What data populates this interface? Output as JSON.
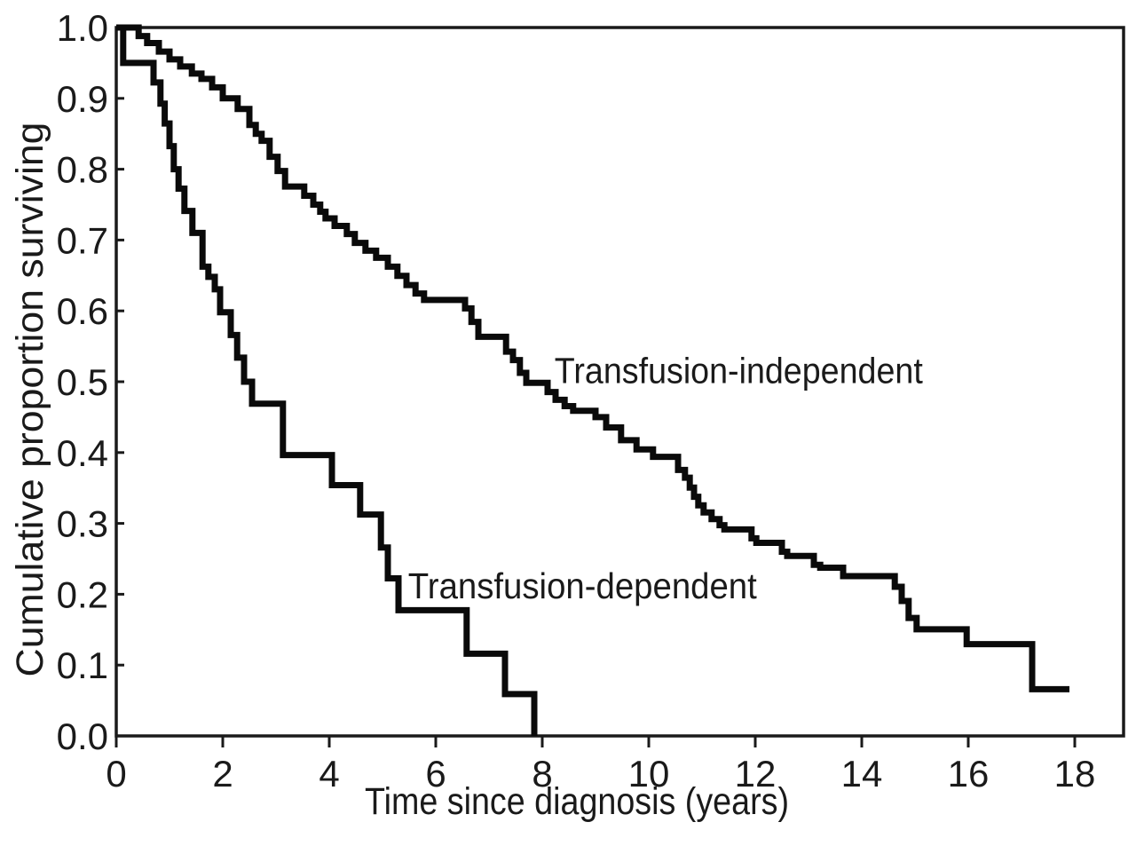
{
  "chart_data": {
    "type": "line",
    "subtype": "kaplan_meier_step_survival",
    "title": "",
    "xlabel": "Time since diagnosis (years)",
    "ylabel": "Cumulative proportion surviving",
    "xlim": [
      0,
      18.92
    ],
    "ylim": [
      0.0,
      1.0
    ],
    "x_ticks": [
      0,
      2,
      4,
      6,
      8,
      10,
      12,
      14,
      16,
      18
    ],
    "y_ticks": [
      0.0,
      0.1,
      0.2,
      0.3,
      0.4,
      0.5,
      0.6,
      0.7,
      0.8,
      0.9,
      1.0
    ],
    "grid": false,
    "frame": true,
    "legend_position": "inline-annotations",
    "background_color": "#ffffff",
    "line_color": "#0a0a0a",
    "series": [
      {
        "name": "Transfusion-independent",
        "end_time": 17.9,
        "points": [
          [
            0,
            1.0
          ],
          [
            0.42,
            0.988
          ],
          [
            0.58,
            0.978
          ],
          [
            0.8,
            0.966
          ],
          [
            1.0,
            0.955
          ],
          [
            1.2,
            0.945
          ],
          [
            1.42,
            0.935
          ],
          [
            1.6,
            0.9275
          ],
          [
            1.8,
            0.9155
          ],
          [
            2.0,
            0.9
          ],
          [
            2.28,
            0.885
          ],
          [
            2.5,
            0.8625
          ],
          [
            2.62,
            0.85
          ],
          [
            2.73,
            0.84
          ],
          [
            2.88,
            0.8175
          ],
          [
            3.03,
            0.7975
          ],
          [
            3.17,
            0.7755
          ],
          [
            3.53,
            0.7625
          ],
          [
            3.7,
            0.75
          ],
          [
            3.83,
            0.74
          ],
          [
            3.93,
            0.7305
          ],
          [
            4.1,
            0.72
          ],
          [
            4.33,
            0.7085
          ],
          [
            4.48,
            0.696
          ],
          [
            4.68,
            0.685
          ],
          [
            4.88,
            0.675
          ],
          [
            5.1,
            0.6625
          ],
          [
            5.28,
            0.6495
          ],
          [
            5.45,
            0.6365
          ],
          [
            5.62,
            0.6245
          ],
          [
            5.78,
            0.6155
          ],
          [
            6.55,
            0.6035
          ],
          [
            6.67,
            0.5845
          ],
          [
            6.8,
            0.5635
          ],
          [
            7.32,
            0.5425
          ],
          [
            7.45,
            0.5305
          ],
          [
            7.58,
            0.5125
          ],
          [
            7.7,
            0.4985
          ],
          [
            8.1,
            0.4855
          ],
          [
            8.25,
            0.4745
          ],
          [
            8.42,
            0.4655
          ],
          [
            8.58,
            0.459
          ],
          [
            9.0,
            0.45
          ],
          [
            9.2,
            0.4355
          ],
          [
            9.48,
            0.4175
          ],
          [
            9.77,
            0.4045
          ],
          [
            10.08,
            0.394
          ],
          [
            10.55,
            0.3755
          ],
          [
            10.68,
            0.3645
          ],
          [
            10.77,
            0.3505
          ],
          [
            10.85,
            0.3375
          ],
          [
            10.93,
            0.3255
          ],
          [
            11.03,
            0.3155
          ],
          [
            11.18,
            0.306
          ],
          [
            11.33,
            0.2975
          ],
          [
            11.42,
            0.2915
          ],
          [
            11.93,
            0.279
          ],
          [
            12.02,
            0.2725
          ],
          [
            12.5,
            0.26
          ],
          [
            12.6,
            0.254
          ],
          [
            13.1,
            0.2415
          ],
          [
            13.22,
            0.2375
          ],
          [
            13.65,
            0.2255
          ],
          [
            14.62,
            0.2105
          ],
          [
            14.75,
            0.1905
          ],
          [
            14.88,
            0.1665
          ],
          [
            15.03,
            0.1505
          ],
          [
            15.97,
            0.1295
          ],
          [
            17.2,
            0.066
          ]
        ]
      },
      {
        "name": "Transfusion-dependent",
        "end_time": 7.85,
        "points": [
          [
            0,
            1.0
          ],
          [
            0.13,
            0.95
          ],
          [
            0.7,
            0.9225
          ],
          [
            0.83,
            0.8925
          ],
          [
            0.91,
            0.8645
          ],
          [
            1.0,
            0.8325
          ],
          [
            1.08,
            0.8
          ],
          [
            1.17,
            0.7725
          ],
          [
            1.28,
            0.741
          ],
          [
            1.43,
            0.71
          ],
          [
            1.62,
            0.6625
          ],
          [
            1.73,
            0.648
          ],
          [
            1.85,
            0.6305
          ],
          [
            1.95,
            0.598
          ],
          [
            2.15,
            0.566
          ],
          [
            2.27,
            0.534
          ],
          [
            2.4,
            0.5
          ],
          [
            2.55,
            0.469
          ],
          [
            3.13,
            0.3965
          ],
          [
            4.05,
            0.354
          ],
          [
            4.58,
            0.3125
          ],
          [
            4.97,
            0.266
          ],
          [
            5.1,
            0.2225
          ],
          [
            5.3,
            0.1775
          ],
          [
            6.58,
            0.116
          ],
          [
            7.3,
            0.059
          ],
          [
            7.85,
            0.0
          ]
        ]
      }
    ],
    "annotations": [
      {
        "text": "Transfusion-independent",
        "t": 8.23,
        "v": 0.498
      },
      {
        "text": "Transfusion-dependent",
        "t": 5.48,
        "v": 0.194
      }
    ]
  }
}
